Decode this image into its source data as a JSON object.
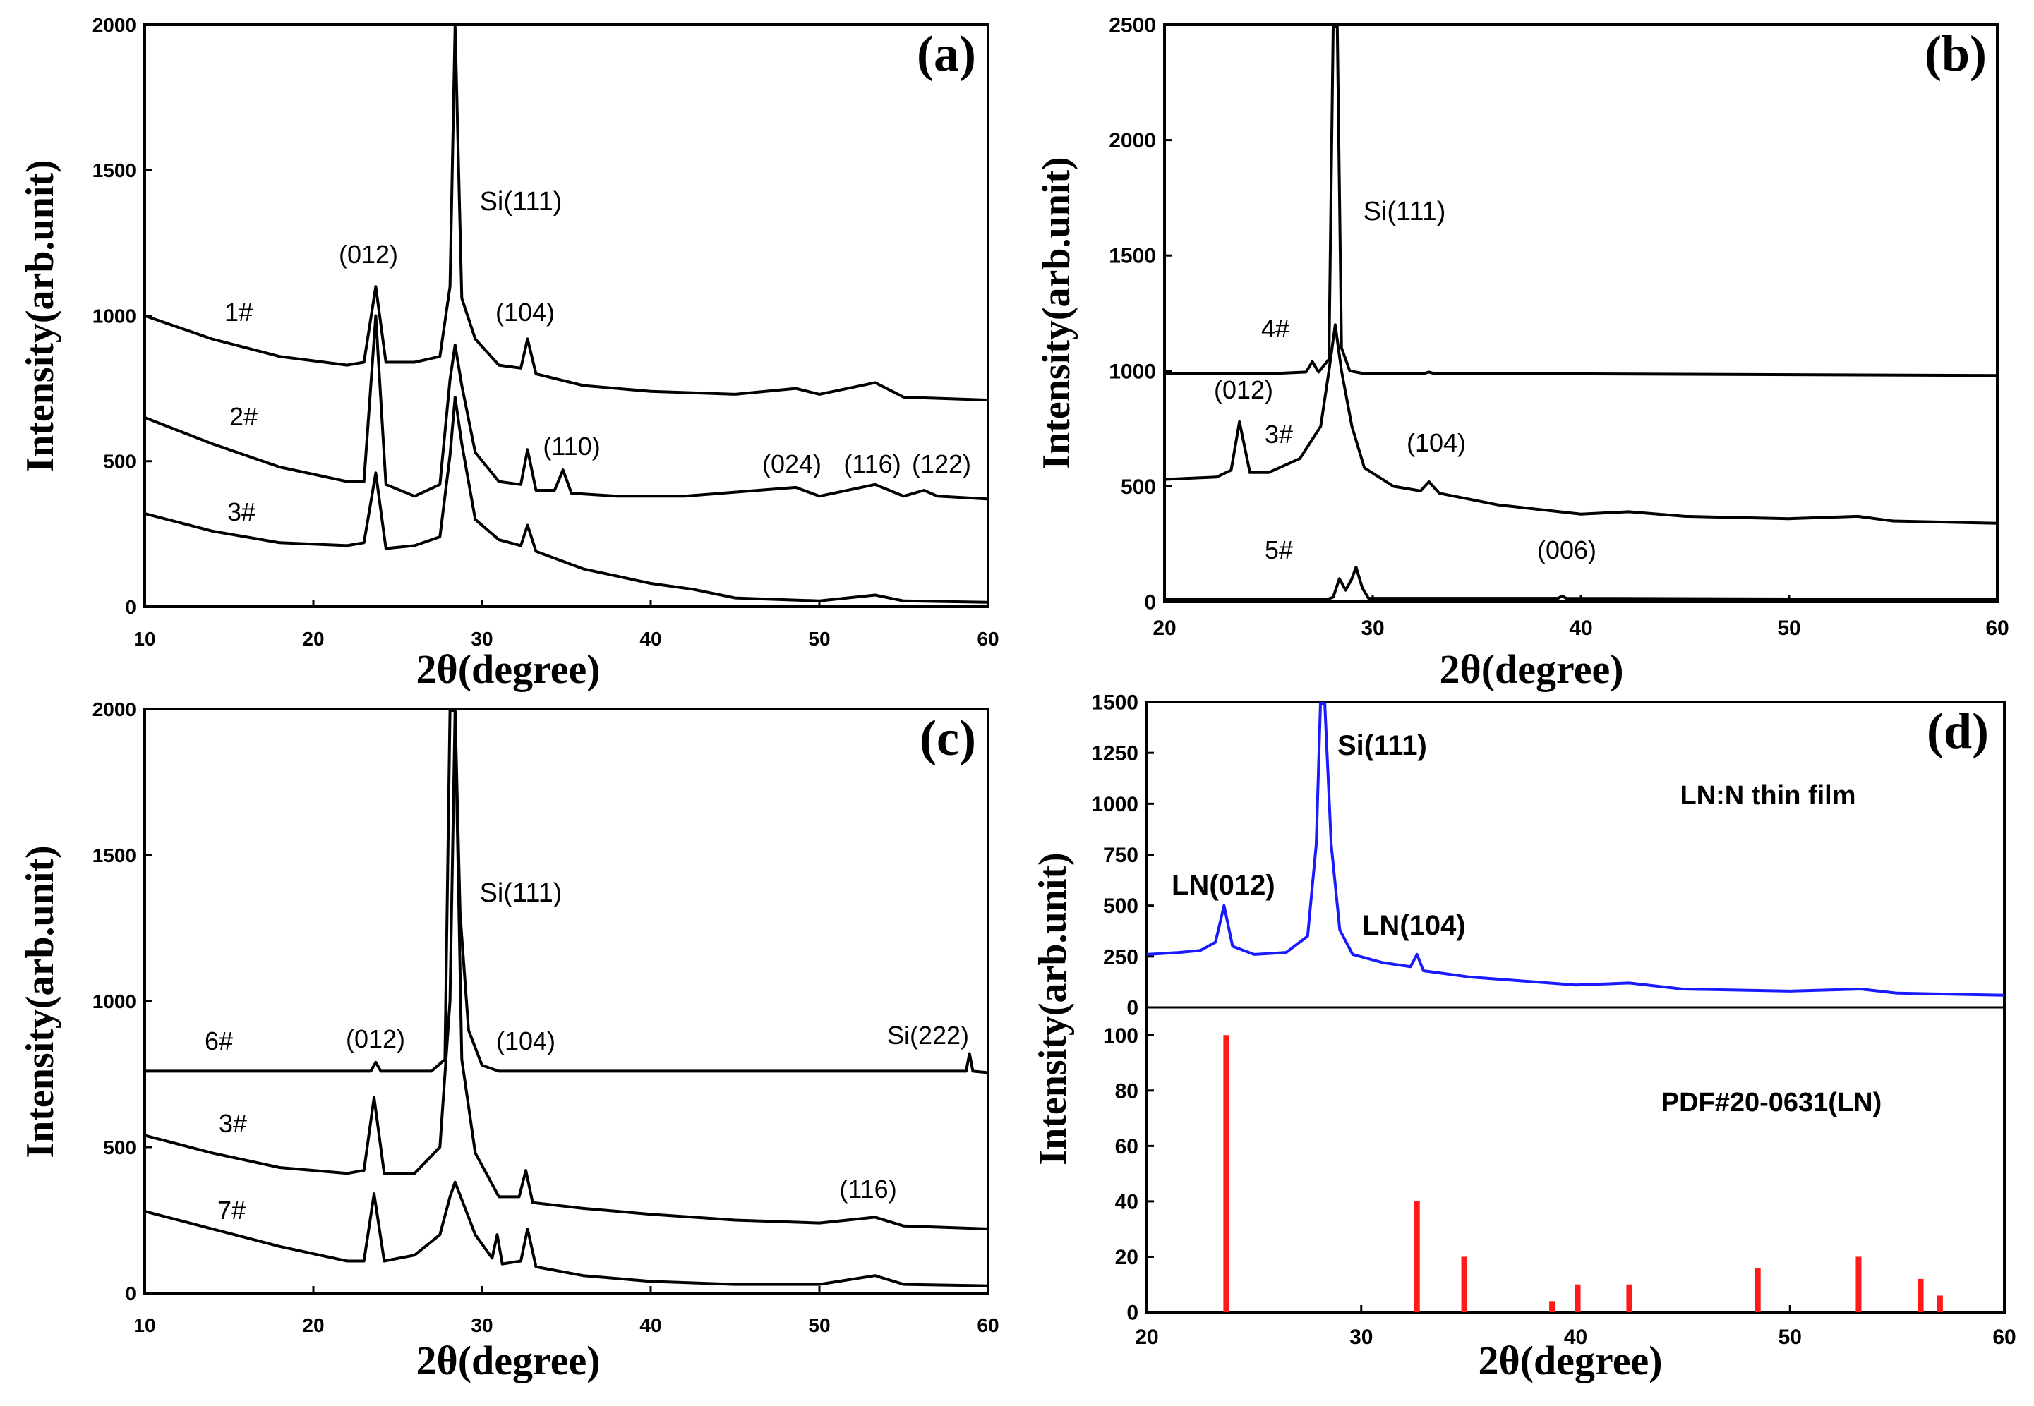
{
  "figure": {
    "palette": {
      "axis": "#000000",
      "film_trace": "#1a1aff",
      "pdf_bars": "#ff1a1a",
      "text": "#000000"
    }
  },
  "chart_data": [
    {
      "id": "a",
      "type": "line",
      "title": "(a)",
      "xlabel": "2θ(degree)",
      "ylabel": "Intensity(arb.unit)",
      "xlim": [
        10,
        60
      ],
      "ylim": [
        0,
        2000
      ],
      "xticks": [
        10,
        20,
        30,
        40,
        50,
        60
      ],
      "yticks": [
        0,
        500,
        1000,
        1500,
        2000
      ],
      "series": [
        {
          "name": "1#",
          "color": "#000000",
          "x": [
            10,
            14,
            18,
            22,
            23,
            23.7,
            24.3,
            26,
            27.5,
            28.1,
            28.4,
            28.8,
            29.6,
            31,
            32.3,
            32.7,
            33.2,
            36,
            40,
            45,
            48.6,
            50,
            53.3,
            55,
            60
          ],
          "y": [
            1000,
            920,
            860,
            830,
            840,
            1100,
            840,
            840,
            860,
            1100,
            2000,
            1060,
            920,
            830,
            820,
            920,
            800,
            760,
            740,
            730,
            750,
            730,
            770,
            720,
            710
          ]
        },
        {
          "name": "2#",
          "color": "#000000",
          "x": [
            10,
            14,
            18,
            22,
            23,
            23.7,
            24.3,
            26,
            27.5,
            28.1,
            28.4,
            28.8,
            29.6,
            31,
            32.3,
            32.7,
            33.2,
            34.3,
            34.8,
            35.3,
            38,
            42,
            48.6,
            50,
            53.3,
            55,
            56.2,
            57,
            60
          ],
          "y": [
            650,
            560,
            480,
            430,
            430,
            1000,
            420,
            380,
            420,
            780,
            900,
            760,
            530,
            430,
            420,
            540,
            400,
            400,
            470,
            390,
            380,
            380,
            410,
            380,
            420,
            380,
            400,
            380,
            370
          ]
        },
        {
          "name": "3#",
          "color": "#000000",
          "x": [
            10,
            14,
            18,
            22,
            23,
            23.7,
            24.3,
            26,
            27.5,
            28.1,
            28.4,
            28.8,
            29.6,
            31,
            32.3,
            32.7,
            33.2,
            36,
            40,
            42.5,
            45,
            50,
            53.3,
            55,
            60
          ],
          "y": [
            320,
            260,
            220,
            210,
            220,
            460,
            200,
            210,
            240,
            520,
            720,
            560,
            300,
            230,
            210,
            280,
            190,
            130,
            80,
            60,
            30,
            20,
            40,
            20,
            15
          ]
        }
      ],
      "annotations": [
        "(012)",
        "Si(111)",
        "(104)",
        "(110)",
        "(024)",
        "(116)",
        "(122)"
      ]
    },
    {
      "id": "b",
      "type": "line",
      "title": "(b)",
      "xlabel": "2θ(degree)",
      "ylabel": "Intensity(arb.unit)",
      "xlim": [
        20,
        60
      ],
      "ylim": [
        0,
        2500
      ],
      "xticks": [
        20,
        30,
        40,
        50,
        60
      ],
      "yticks": [
        0,
        500,
        1000,
        1500,
        2000,
        2500
      ],
      "series": [
        {
          "name": "4#",
          "color": "#000000",
          "x": [
            20,
            25.5,
            26.8,
            27.1,
            27.4,
            27.9,
            28.1,
            28.3,
            28.5,
            28.9,
            29.5,
            32.5,
            32.7,
            32.9,
            60
          ],
          "y": [
            990,
            990,
            995,
            1040,
            995,
            1050,
            2500,
            2500,
            1100,
            1000,
            990,
            990,
            995,
            990,
            980
          ]
        },
        {
          "name": "3#",
          "color": "#000000",
          "x": [
            20,
            22.5,
            23.2,
            23.6,
            24.1,
            25,
            26.5,
            27.5,
            27.9,
            28.2,
            28.5,
            29,
            29.6,
            31,
            32.3,
            32.7,
            33.2,
            36,
            40,
            42.3,
            45,
            50,
            53.3,
            55,
            60
          ],
          "y": [
            530,
            540,
            570,
            780,
            560,
            560,
            620,
            760,
            1000,
            1200,
            1000,
            760,
            580,
            500,
            480,
            520,
            470,
            420,
            380,
            390,
            370,
            360,
            370,
            350,
            340
          ]
        },
        {
          "name": "5#",
          "color": "#000000",
          "x": [
            20,
            27.8,
            28.1,
            28.4,
            28.7,
            29,
            29.2,
            29.5,
            29.8,
            38.9,
            39.1,
            39.3,
            60
          ],
          "y": [
            10,
            10,
            20,
            100,
            50,
            100,
            150,
            60,
            15,
            15,
            25,
            15,
            10
          ]
        }
      ],
      "annotations": [
        "Si(111)",
        "(012)",
        "(104)",
        "(006)"
      ]
    },
    {
      "id": "c",
      "type": "line",
      "title": "(c)",
      "xlabel": "2θ(degree)",
      "ylabel": "Intensity(arb.unit)",
      "xlim": [
        10,
        60
      ],
      "ylim": [
        0,
        2000
      ],
      "xticks": [
        10,
        20,
        30,
        40,
        50,
        60
      ],
      "yticks": [
        0,
        500,
        1000,
        1500,
        2000
      ],
      "series": [
        {
          "name": "6#",
          "color": "#000000",
          "x": [
            10,
            23.4,
            23.7,
            24,
            27,
            27.8,
            28.1,
            28.4,
            28.7,
            29.2,
            30,
            31,
            58.7,
            58.9,
            59.1,
            60
          ],
          "y": [
            760,
            760,
            790,
            760,
            760,
            800,
            2000,
            2000,
            1300,
            900,
            780,
            760,
            760,
            820,
            760,
            755
          ]
        },
        {
          "name": "3#",
          "color": "#000000",
          "x": [
            10,
            14,
            18,
            22,
            23,
            23.6,
            24.2,
            26,
            27.5,
            28.1,
            28.4,
            28.8,
            29.6,
            31,
            32.2,
            32.6,
            33,
            36,
            40,
            45,
            50,
            53.3,
            55,
            60
          ],
          "y": [
            540,
            480,
            430,
            410,
            420,
            670,
            410,
            410,
            500,
            1000,
            2000,
            800,
            480,
            330,
            330,
            420,
            310,
            290,
            270,
            250,
            240,
            260,
            230,
            220
          ]
        },
        {
          "name": "7#",
          "color": "#000000",
          "x": [
            10,
            14,
            18,
            22,
            23,
            23.6,
            24.2,
            26,
            27.5,
            28.1,
            28.4,
            28.8,
            29.6,
            30.6,
            30.9,
            31.2,
            32.3,
            32.7,
            33.2,
            36,
            40,
            45,
            50,
            53.3,
            55,
            60
          ],
          "y": [
            280,
            220,
            160,
            110,
            110,
            340,
            110,
            130,
            200,
            330,
            380,
            320,
            200,
            120,
            200,
            100,
            110,
            220,
            90,
            60,
            40,
            30,
            30,
            60,
            30,
            25
          ]
        }
      ],
      "annotations": [
        "Si(111)",
        "(012)",
        "(104)",
        "Si(222)",
        "(116)"
      ]
    },
    {
      "id": "d",
      "type": "line",
      "title": "(d)",
      "xlabel": "2θ(degree)",
      "ylabel": "Intensity(arb.unit)",
      "xlim": [
        20,
        60
      ],
      "ylim": [
        0,
        1500
      ],
      "xticks": [
        20,
        30,
        40,
        50,
        60
      ],
      "yticks": [
        0,
        250,
        500,
        750,
        1000,
        1250,
        1500
      ],
      "series": [
        {
          "name": "LN:N thin film",
          "color": "#1a1aff",
          "x": [
            20,
            21.5,
            22.5,
            23.2,
            23.6,
            24,
            25,
            26.5,
            27.5,
            27.9,
            28.1,
            28.3,
            28.6,
            29,
            29.6,
            31,
            32.3,
            32.6,
            32.9,
            35,
            40,
            42.5,
            45,
            50,
            53.3,
            55,
            60
          ],
          "y": [
            260,
            270,
            280,
            320,
            500,
            300,
            260,
            270,
            350,
            800,
            1500,
            1500,
            800,
            380,
            260,
            220,
            200,
            260,
            180,
            150,
            110,
            120,
            90,
            80,
            90,
            70,
            60
          ]
        }
      ],
      "annotations": [
        "Si(111)",
        "LN(012)",
        "LN(104)"
      ]
    },
    {
      "id": "d-ref",
      "type": "bar",
      "title": "PDF#20-0631(LN)",
      "xlabel": "2θ(degree)",
      "ylabel": "",
      "xlim": [
        20,
        60
      ],
      "ylim": [
        0,
        110
      ],
      "xticks": [
        20,
        30,
        40,
        50,
        60
      ],
      "yticks": [
        0,
        20,
        40,
        60,
        80,
        100
      ],
      "x": [
        23.7,
        32.6,
        34.8,
        38.9,
        40.1,
        42.5,
        48.5,
        53.2,
        56.1,
        57.0
      ],
      "values": [
        100,
        40,
        20,
        4,
        10,
        10,
        16,
        20,
        12,
        6
      ],
      "color": "#ff1a1a"
    }
  ]
}
